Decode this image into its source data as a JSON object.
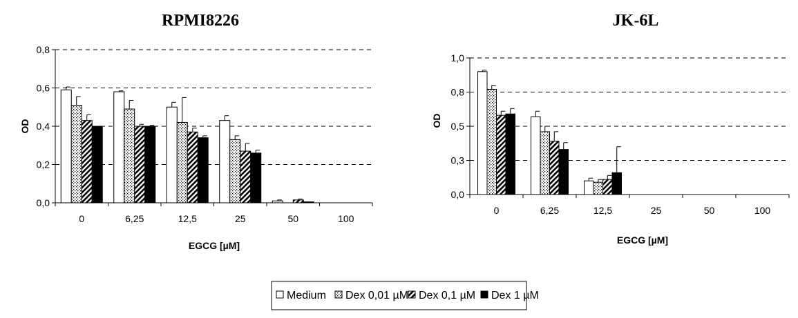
{
  "legend": [
    {
      "name": "Medium",
      "pattern": "white"
    },
    {
      "name": "Dex 0,01 µM",
      "pattern": "dots"
    },
    {
      "name": "Dex 0,1 µM",
      "pattern": "hatch"
    },
    {
      "name": "Dex 1 µM",
      "pattern": "black"
    }
  ],
  "chart_data": [
    {
      "type": "bar",
      "title": "RPMI8226",
      "xlabel": "EGCG [µM]",
      "ylabel": "OD",
      "ylim": [
        0,
        0.8
      ],
      "yticks": [
        "0,0",
        "0,2",
        "0,4",
        "0,6",
        "0,8"
      ],
      "grid": true,
      "categories": [
        "0",
        "6,25",
        "12,5",
        "25",
        "50",
        "100"
      ],
      "series": [
        {
          "name": "Medium",
          "values": [
            0.59,
            0.58,
            0.5,
            0.43,
            0.01,
            0.0
          ],
          "errors": [
            0.015,
            0.005,
            0.025,
            0.025,
            0.005,
            0.0
          ]
        },
        {
          "name": "Dex 0,01 µM",
          "values": [
            0.51,
            0.49,
            0.42,
            0.33,
            0.0,
            0.0
          ],
          "errors": [
            0.045,
            0.045,
            0.13,
            0.02,
            0.0,
            0.0
          ]
        },
        {
          "name": "Dex 0,1 µM",
          "values": [
            0.43,
            0.4,
            0.37,
            0.27,
            0.015,
            0.0
          ],
          "errors": [
            0.03,
            0.01,
            0.02,
            0.04,
            0.005,
            0.0
          ]
        },
        {
          "name": "Dex 1 µM",
          "values": [
            0.4,
            0.4,
            0.34,
            0.26,
            0.005,
            0.0
          ],
          "errors": [
            0.0,
            0.005,
            0.01,
            0.015,
            0.0,
            0.0
          ]
        }
      ]
    },
    {
      "type": "bar",
      "title": "JK-6L",
      "xlabel": "EGCG [µM]",
      "ylabel": "OD",
      "ylim": [
        0,
        1.0
      ],
      "yticks": [
        "0,0",
        "0,3",
        "0,5",
        "0,8",
        "1,0"
      ],
      "grid": true,
      "categories": [
        "0",
        "6,25",
        "12,5",
        "25",
        "50",
        "100"
      ],
      "series": [
        {
          "name": "Medium",
          "values": [
            0.9,
            0.57,
            0.1,
            0.0,
            0.0,
            0.0
          ],
          "errors": [
            0.01,
            0.04,
            0.02,
            0.0,
            0.0,
            0.0
          ]
        },
        {
          "name": "Dex 0,01 µM",
          "values": [
            0.77,
            0.46,
            0.09,
            0.0,
            0.0,
            0.0
          ],
          "errors": [
            0.03,
            0.04,
            0.02,
            0.0,
            0.0,
            0.0
          ]
        },
        {
          "name": "Dex 0,1 µM",
          "values": [
            0.58,
            0.39,
            0.11,
            0.0,
            0.0,
            0.0
          ],
          "errors": [
            0.03,
            0.07,
            0.03,
            0.0,
            0.0,
            0.0
          ]
        },
        {
          "name": "Dex 1 µM",
          "values": [
            0.59,
            0.33,
            0.16,
            0.0,
            0.0,
            0.0
          ],
          "errors": [
            0.04,
            0.05,
            0.19,
            0.0,
            0.0,
            0.0
          ]
        }
      ]
    }
  ]
}
